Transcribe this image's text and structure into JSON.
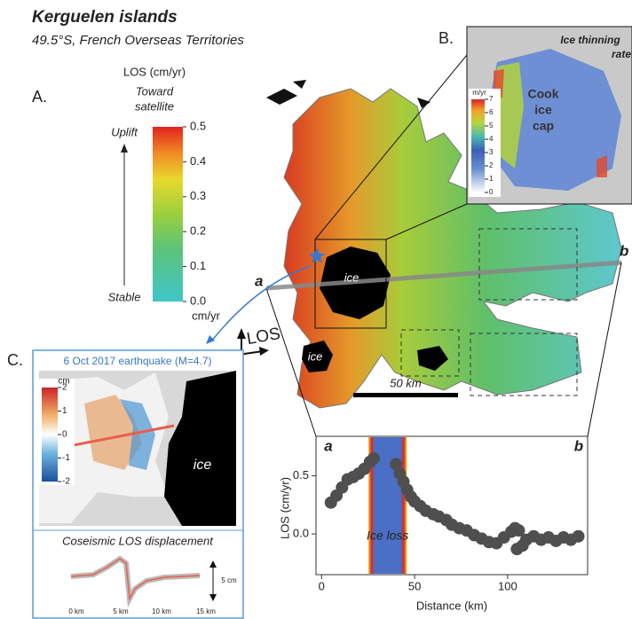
{
  "header": {
    "title": "Kerguelen islands",
    "subtitle": "49.5°S, French Overseas Territories"
  },
  "panel_a": {
    "label": "A.",
    "colorbar_title": "LOS (cm/yr)",
    "direction": [
      "Toward",
      "satellite"
    ],
    "top_label": "Uplift",
    "bottom_label": "Stable",
    "unit": "cm/yr",
    "clim": [
      0,
      0.5
    ],
    "ticks": [
      0.5,
      0.4,
      0.3,
      0.2,
      0.1,
      {
        "value": 0,
        "label": "0.0"
      }
    ]
  },
  "map": {
    "ice_labels": [
      "ice",
      "ice"
    ],
    "scale_bar": "50 km",
    "profile_start": "a",
    "profile_end": "b",
    "los_label": "LOS"
  },
  "panel_b": {
    "label": "B.",
    "title": [
      "Ice thinning",
      "rate"
    ],
    "unit": "m/yr",
    "clim": [
      0,
      7
    ],
    "ticks": [
      0,
      1,
      2,
      3,
      4,
      5,
      6,
      7
    ],
    "ice_cap": [
      "Cook",
      "ice",
      "cap"
    ]
  },
  "panel_c": {
    "label": "C.",
    "title": "6 Oct 2017 earthquake (M=4.7)",
    "unit": "cm",
    "clim": [
      -2,
      2
    ],
    "ticks": [
      2,
      1,
      0,
      -1,
      -2
    ],
    "ice_label": "ice",
    "subtitle": "Coseismic LOS displacement",
    "scale": "5 cm",
    "x_labels": [
      "0 km",
      "5 km",
      "10 km",
      "15 km"
    ]
  },
  "chart_data": {
    "type": "scatter",
    "start_label": "a",
    "end_label": "b",
    "y_label": "LOS (cm/yr)",
    "x_label": "Distance (km)",
    "annotation": "Ice loss",
    "annotation_range": [
      28,
      43
    ],
    "x": [
      5,
      8,
      11,
      14,
      17,
      20,
      23,
      26,
      28,
      40,
      42,
      44,
      46,
      48,
      50,
      53,
      56,
      60,
      63,
      67,
      70,
      74,
      78,
      82,
      86,
      90,
      94,
      98,
      102,
      104,
      106,
      110,
      105,
      108,
      114,
      118,
      122,
      126,
      130,
      134,
      138
    ],
    "series": [
      {
        "color": "#4f4f4f",
        "values": [
          0.27,
          0.33,
          0.4,
          0.47,
          0.49,
          0.52,
          0.56,
          0.62,
          0.65,
          0.6,
          0.52,
          0.45,
          0.38,
          0.32,
          0.28,
          0.24,
          0.2,
          0.17,
          0.15,
          0.12,
          0.08,
          0.05,
          0.03,
          -0.01,
          -0.04,
          -0.07,
          -0.08,
          -0.03,
          0.02,
          0.05,
          0.03,
          -0.05,
          -0.13,
          -0.1,
          -0.02,
          -0.05,
          -0.03,
          -0.06,
          -0.03,
          -0.05,
          -0.02
        ]
      }
    ],
    "xlim": [
      -3,
      143
    ],
    "ylim": [
      -0.35,
      0.84
    ],
    "xticks": [
      0,
      50,
      100
    ],
    "yticks": [
      {
        "value": 0,
        "label": "0.0"
      },
      0.5
    ]
  }
}
